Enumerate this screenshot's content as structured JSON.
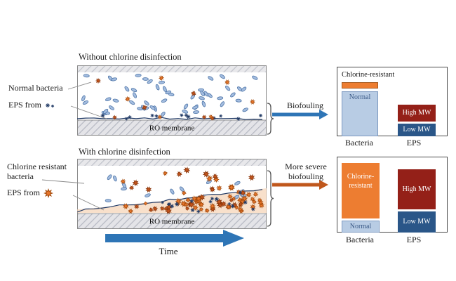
{
  "top": {
    "title": "Without chlorine disinfection",
    "membrane": "RO membrane",
    "label_bacteria": "Normal bacteria",
    "label_eps": "EPS from",
    "arrow": "Biofouling",
    "chart": {
      "resistant": "Chlorine-resistant",
      "normal": "Normal",
      "high": "High MW",
      "low": "Low MW",
      "x_bacteria": "Bacteria",
      "x_eps": "EPS"
    }
  },
  "bottom": {
    "title": "With chlorine disinfection",
    "membrane": "RO membrane",
    "label_bacteria_1": "Chlorine resistant",
    "label_bacteria_2": "bacteria",
    "label_eps": "EPS from",
    "arrow_1": "More severe",
    "arrow_2": "biofouling",
    "chart": {
      "resistant_1": "Chlorine-",
      "resistant_2": "resistant",
      "normal": "Normal",
      "high": "High MW",
      "low": "Low MW",
      "x_bacteria": "Bacteria",
      "x_eps": "EPS"
    }
  },
  "time_label": "Time",
  "colors": {
    "blue_arrow": "#2e75b6",
    "orange_arrow": "#c0571c",
    "normal_bar": "#b8cce4",
    "resistant_bar": "#ed7d31",
    "high_mw_bar": "#942018",
    "low_mw_bar": "#2a5688"
  }
}
